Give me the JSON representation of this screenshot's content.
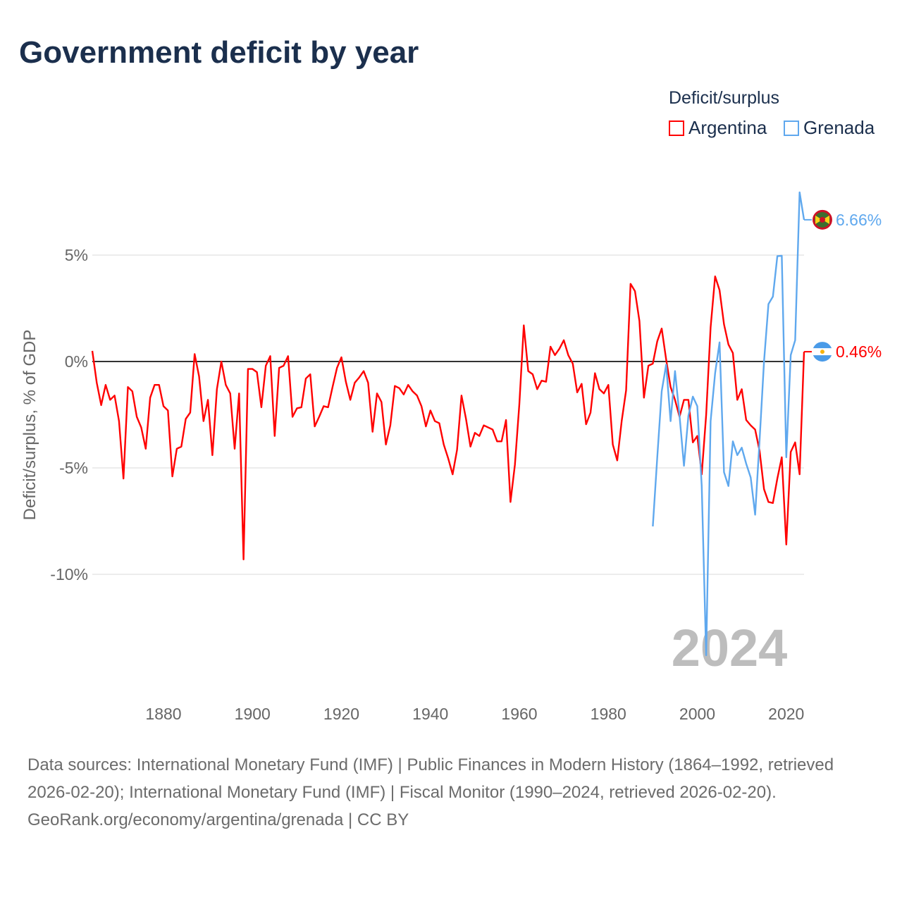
{
  "title": "Government deficit by year",
  "legend": {
    "title": "Deficit/surplus",
    "items": [
      {
        "label": "Argentina",
        "color": "#ff0000"
      },
      {
        "label": "Grenada",
        "color": "#5fa8ee"
      }
    ]
  },
  "footer": {
    "sources": "Data sources: International Monetary Fund (IMF) | Public Finances in Modern History (1864–1992, retrieved 2026-02-20); International Monetary Fund (IMF) | Fiscal Monitor (1990–2024, retrieved 2026-02-20).",
    "credit": "GeoRank.org/economy/argentina/grenada | CC BY"
  },
  "chart_data": {
    "type": "line",
    "title": "Government deficit by year",
    "xlabel": "",
    "ylabel": "Deficit/surplus, % of GDP",
    "xlim": [
      1864,
      2024
    ],
    "ylim": [
      -14,
      8
    ],
    "yticks": [
      {
        "value": 5,
        "label": "5%"
      },
      {
        "value": 0,
        "label": "0%"
      },
      {
        "value": -5,
        "label": "-5%"
      },
      {
        "value": -10,
        "label": "-10%"
      }
    ],
    "xticks": [
      {
        "value": 1880,
        "label": "1880"
      },
      {
        "value": 1900,
        "label": "1900"
      },
      {
        "value": 1920,
        "label": "1920"
      },
      {
        "value": 1940,
        "label": "1940"
      },
      {
        "value": 1960,
        "label": "1960"
      },
      {
        "value": 1980,
        "label": "1980"
      },
      {
        "value": 2000,
        "label": "2000"
      },
      {
        "value": 2020,
        "label": "2020"
      }
    ],
    "year_label": "2024",
    "series": [
      {
        "name": "Argentina",
        "color": "#ff0000",
        "start_year": 1864,
        "end_label": "0.46%",
        "values": [
          0.5,
          -1.0,
          -2.05,
          -1.1,
          -1.8,
          -1.6,
          -2.8,
          -5.5,
          -1.2,
          -1.4,
          -2.6,
          -3.1,
          -4.1,
          -1.7,
          -1.1,
          -1.1,
          -2.1,
          -2.3,
          -5.4,
          -4.1,
          -4.0,
          -2.7,
          -2.4,
          0.35,
          -0.7,
          -2.8,
          -1.8,
          -4.4,
          -1.3,
          0.0,
          -1.1,
          -1.5,
          -4.1,
          -1.5,
          -9.3,
          -0.35,
          -0.35,
          -0.5,
          -2.15,
          -0.2,
          0.25,
          -3.5,
          -0.3,
          -0.2,
          0.25,
          -2.6,
          -2.2,
          -2.15,
          -0.8,
          -0.6,
          -3.05,
          -2.6,
          -2.1,
          -2.15,
          -1.2,
          -0.3,
          0.2,
          -0.95,
          -1.8,
          -1.0,
          -0.75,
          -0.45,
          -1.0,
          -3.3,
          -1.5,
          -1.9,
          -3.9,
          -3.0,
          -1.15,
          -1.25,
          -1.55,
          -1.1,
          -1.4,
          -1.6,
          -2.1,
          -3.05,
          -2.3,
          -2.8,
          -2.9,
          -3.9,
          -4.55,
          -5.3,
          -4.15,
          -1.6,
          -2.7,
          -4.0,
          -3.35,
          -3.5,
          -3.0,
          -3.1,
          -3.2,
          -3.75,
          -3.75,
          -2.75,
          -6.6,
          -4.85,
          -2.0,
          1.7,
          -0.45,
          -0.6,
          -1.3,
          -0.9,
          -0.95,
          0.7,
          0.3,
          0.6,
          1.0,
          0.3,
          -0.1,
          -1.45,
          -1.05,
          -2.95,
          -2.4,
          -0.55,
          -1.3,
          -1.5,
          -1.1,
          -3.9,
          -4.65,
          -2.8,
          -1.35,
          3.65,
          3.3,
          1.9,
          -1.7,
          -0.2,
          -0.1,
          0.95,
          1.55,
          0.1,
          -1.2,
          -1.8,
          -2.6,
          -1.8,
          -1.8,
          -3.8,
          -3.5,
          -5.3,
          -2.5,
          1.6,
          4.0,
          3.35,
          1.75,
          0.8,
          0.4,
          -1.8,
          -1.3,
          -2.75,
          -3.0,
          -3.2,
          -4.2,
          -6.0,
          -6.6,
          -6.65,
          -5.5,
          -4.5,
          -8.6,
          -4.25,
          -3.8,
          -5.3,
          0.46
        ]
      },
      {
        "name": "Grenada",
        "color": "#5fa8ee",
        "start_year": 1990,
        "end_label": "6.66%",
        "values": [
          -7.75,
          -4.5,
          -1.4,
          -0.15,
          -2.8,
          -0.45,
          -2.55,
          -4.9,
          -2.55,
          -1.65,
          -2.1,
          -5.85,
          -13.8,
          -2.8,
          -0.55,
          0.9,
          -5.2,
          -5.85,
          -3.75,
          -4.4,
          -4.05,
          -4.8,
          -5.45,
          -7.2,
          -3.7,
          0.0,
          2.7,
          3.05,
          4.95,
          4.97,
          -4.5,
          0.3,
          1.0,
          7.95,
          6.66
        ]
      }
    ]
  }
}
